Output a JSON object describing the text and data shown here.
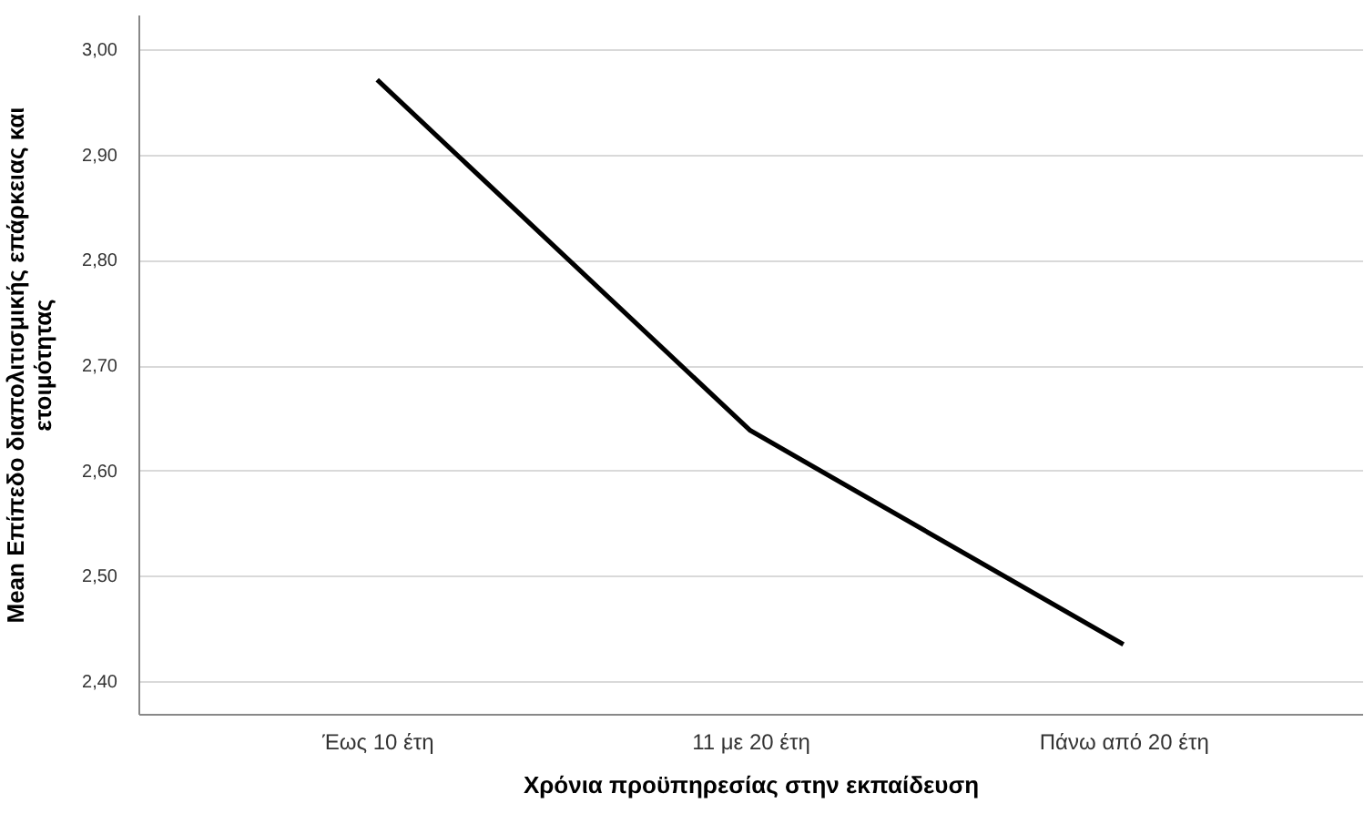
{
  "chart_data": {
    "type": "line",
    "xlabel": "Χρόνια προϋπηρεσίας στην εκπαίδευση",
    "ylabel": "Mean Επίπεδο διαπολιτισμικής επάρκειας και ετοιμότητας",
    "categories": [
      "Έως 10 έτη",
      "11 με 20 έτη",
      "Πάνω από 20 έτη"
    ],
    "series": [
      {
        "color": "#000000",
        "values": [
          2.971,
          2.638,
          2.435
        ]
      }
    ],
    "ylim": [
      2.369,
      3.033
    ],
    "yticks": [
      {
        "value": 2.4,
        "label": "2,40"
      },
      {
        "value": 2.5,
        "label": "2,50"
      },
      {
        "value": 2.6,
        "label": "2,60"
      },
      {
        "value": 2.7,
        "label": "2,70"
      },
      {
        "value": 2.8,
        "label": "2,80"
      },
      {
        "value": 2.9,
        "label": "2,90"
      },
      {
        "value": 3.0,
        "label": "3,00"
      }
    ],
    "grid": "y",
    "marker": "none",
    "line_style": "solid"
  }
}
